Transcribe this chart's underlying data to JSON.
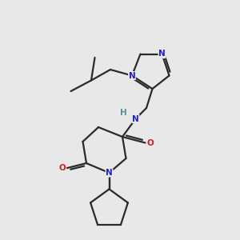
{
  "background_color": "#e8e8e8",
  "bond_color": "#2a2a2a",
  "nitrogen_color": "#2222cc",
  "oxygen_color": "#cc2222",
  "hydrogen_color": "#5a9090",
  "figsize": [
    3.0,
    3.0
  ],
  "dpi": 100,
  "xlim": [
    0,
    10
  ],
  "ylim": [
    0,
    10
  ],
  "lw": 1.6,
  "fs": 7.5
}
